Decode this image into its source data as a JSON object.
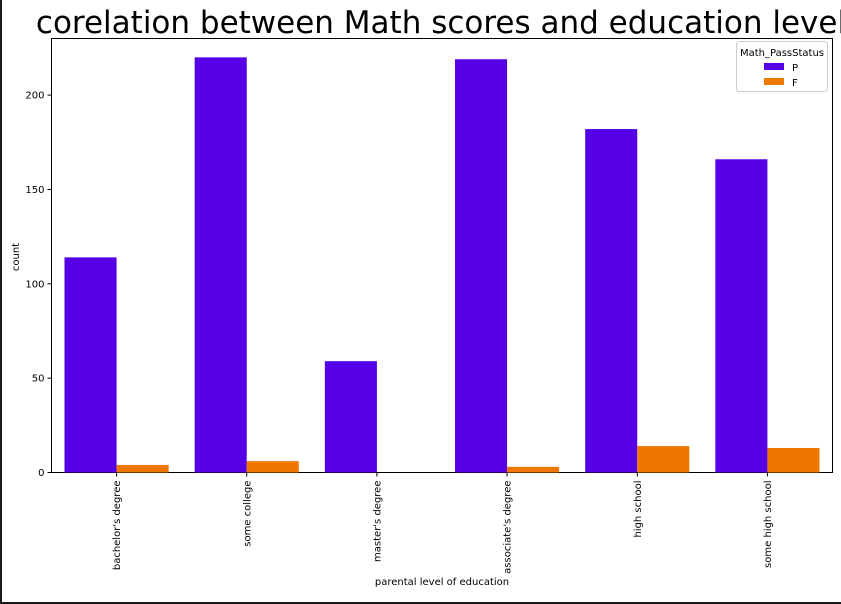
{
  "chart_data": {
    "type": "bar",
    "title": "corelation between Math scores and education level",
    "xlabel": "parental level of education",
    "ylabel": "count",
    "categories": [
      "bachelor's degree",
      "some college",
      "master's degree",
      "associate's degree",
      "high school",
      "some high school"
    ],
    "series": [
      {
        "name": "P",
        "color": "#5500e6",
        "values": [
          114,
          220,
          59,
          219,
          182,
          166
        ]
      },
      {
        "name": "F",
        "color": "#ee7700",
        "values": [
          4,
          6,
          0,
          3,
          14,
          13
        ]
      }
    ],
    "ylim": [
      0,
      230
    ],
    "yticks": [
      0,
      50,
      100,
      150,
      200
    ],
    "legend": {
      "title": "Math_PassStatus",
      "placement": "top-right"
    },
    "grid": false
  }
}
